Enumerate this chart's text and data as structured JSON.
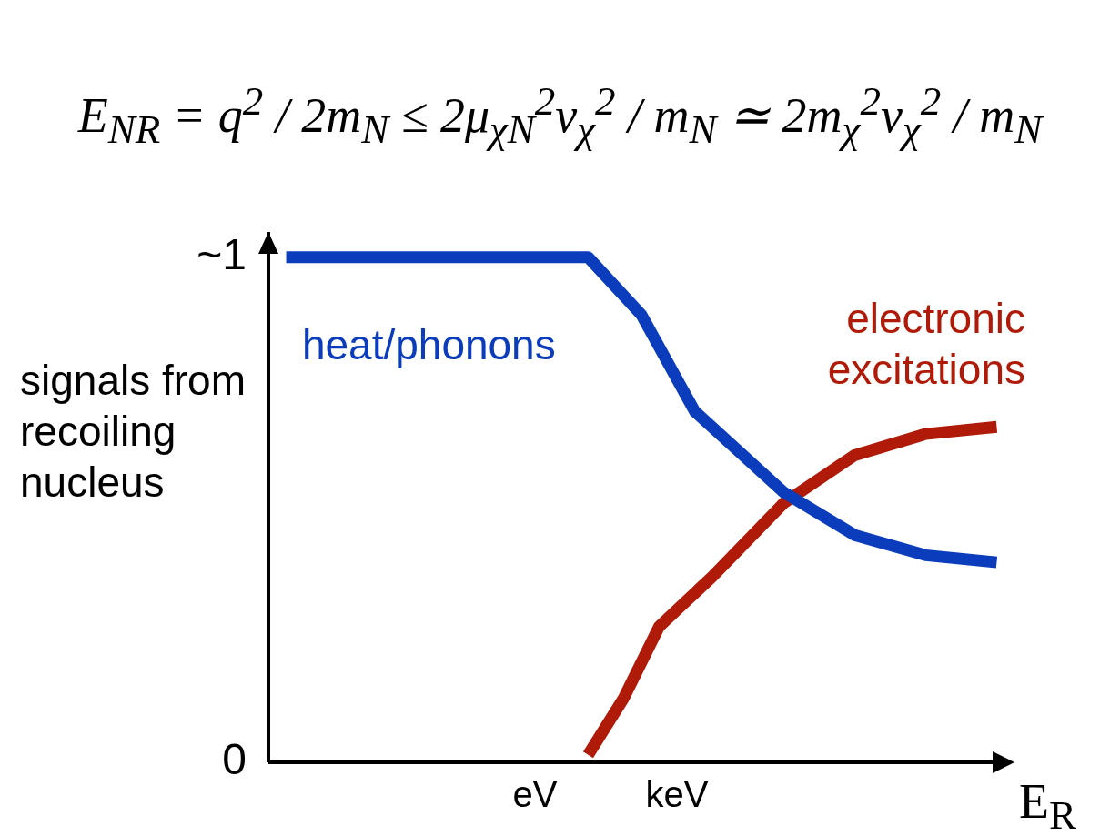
{
  "chart_data": {
    "type": "line",
    "title": "E$_{NR}$ = q$^{2}$ / 2m$_{N}$ ≤ 2μ$_{χN}$$^{2}$v$_{χ}$$^{2}$ / m$_{N}$ ≃ 2m$_{χ}$$^{2}$v$_{χ}$$^{2}$ / m$_{N}$",
    "xlabel": "E$_{R}$",
    "ylabel": "signals from recoiling nucleus",
    "categories": [
      null,
      null,
      null,
      null,
      null,
      null,
      null,
      null,
      null,
      null,
      null,
      null,
      null,
      null,
      null,
      "eV",
      null,
      null,
      null,
      null,
      null,
      null,
      null,
      "keV",
      null,
      null,
      null,
      null,
      null,
      null,
      null,
      null,
      null,
      null,
      null,
      null,
      null,
      null,
      null,
      null,
      null,
      null,
      null
    ],
    "ylim": [
      0,
      1.05
    ],
    "yticks": [
      0,
      {
        "value": 1,
        "label": "~1"
      }
    ],
    "grid": false,
    "legend": false,
    "marker": "none",
    "line_style": "solid",
    "series": [
      {
        "name": "heat/phonons",
        "color": "#0a3cbc",
        "values": [
          null,
          1.0,
          null,
          null,
          null,
          null,
          null,
          null,
          null,
          null,
          null,
          null,
          null,
          null,
          null,
          null,
          null,
          null,
          1.0,
          null,
          null,
          0.886,
          null,
          null,
          0.695,
          null,
          null,
          null,
          null,
          0.535,
          null,
          null,
          null,
          0.45,
          null,
          null,
          null,
          0.41,
          null,
          null,
          null,
          0.396,
          null
        ]
      },
      {
        "name": "electronic excitations",
        "color": "#b01a08",
        "values": [
          null,
          null,
          null,
          null,
          null,
          null,
          null,
          null,
          null,
          null,
          null,
          null,
          null,
          null,
          null,
          null,
          null,
          null,
          0.015,
          null,
          0.127,
          null,
          0.269,
          null,
          null,
          0.368,
          null,
          null,
          null,
          0.513,
          null,
          null,
          null,
          0.608,
          null,
          null,
          null,
          0.65,
          null,
          null,
          null,
          0.664,
          null
        ]
      }
    ]
  }
}
